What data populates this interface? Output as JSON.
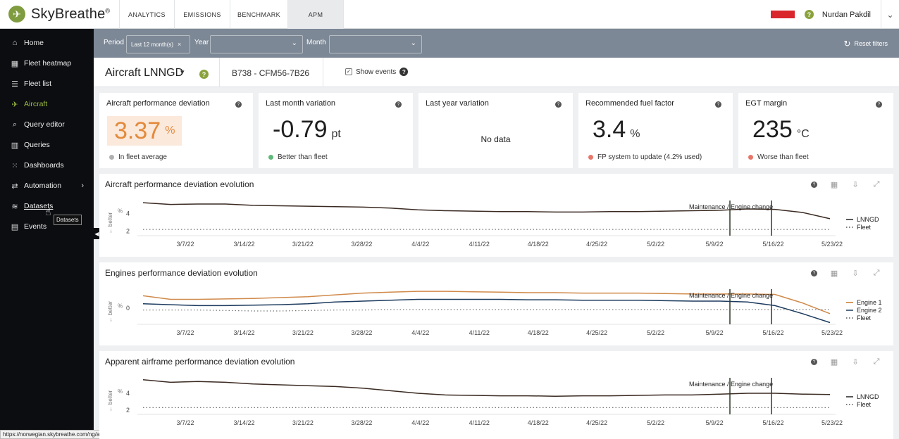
{
  "app": {
    "name": "SkyBreathe",
    "logo_mark": "®"
  },
  "top_nav": {
    "tabs": [
      "ANALYTICS",
      "EMISSIONS",
      "BENCHMARK",
      "APM"
    ],
    "active": "APM",
    "user_name": "Nurdan Pakdil",
    "help_glyph": "?",
    "chevron_glyph": "⌄"
  },
  "sidebar": {
    "items": [
      {
        "label": "Home",
        "icon": "home-icon",
        "glyph": "⌂"
      },
      {
        "label": "Fleet heatmap",
        "icon": "grid-icon",
        "glyph": "▦"
      },
      {
        "label": "Fleet list",
        "icon": "list-icon",
        "glyph": "☰"
      },
      {
        "label": "Aircraft",
        "icon": "plane-icon",
        "glyph": "✈",
        "active": true
      },
      {
        "label": "Query editor",
        "icon": "search-icon",
        "glyph": "⌕"
      },
      {
        "label": "Queries",
        "icon": "bar-chart-icon",
        "glyph": "▥"
      },
      {
        "label": "Dashboards",
        "icon": "dashboard-icon",
        "glyph": "⁙"
      },
      {
        "label": "Automation",
        "icon": "automation-icon",
        "glyph": "⇄",
        "has_chevron": true
      },
      {
        "label": "Datasets",
        "icon": "database-icon",
        "glyph": "≋"
      },
      {
        "label": "Events",
        "icon": "calendar-icon",
        "glyph": "▤"
      }
    ],
    "chevron_glyph": "›",
    "tooltip": "Datasets",
    "collapse_glyph": "◀"
  },
  "status_url": "https://norwegian.skybreathe.com/ng/apm/data-explorer",
  "filters": {
    "period_label": "Period",
    "period_value": "Last 12 month(s)",
    "year_label": "Year",
    "month_label": "Month",
    "reset_label": "Reset filters",
    "clear_glyph": "×",
    "dropdown_glyph": "⌄",
    "reset_glyph": "↻"
  },
  "aircraft": {
    "title": "Aircraft LNNGD",
    "model": "B738 - CFM56-7B26",
    "show_events_label": "Show events",
    "show_events_checked": true,
    "check_glyph": "✓"
  },
  "kpis": [
    {
      "title": "Aircraft performance deviation",
      "value": "3.37",
      "unit": "%",
      "footnote": "In fleet average",
      "status_color": "#b0b0b0",
      "highlight": true
    },
    {
      "title": "Last month variation",
      "value": "-0.79",
      "unit": "pt",
      "footnote": "Better than fleet",
      "status_color": "#5fb97a"
    },
    {
      "title": "Last year variation",
      "no_data": "No data"
    },
    {
      "title": "Recommended fuel factor",
      "value": "3.4",
      "unit": "%",
      "footnote": "FP system to update (4.2% used)",
      "status_color": "#e8766a"
    },
    {
      "title": "EGT margin",
      "value": "235",
      "unit": "°C",
      "footnote": "Worse than fleet",
      "status_color": "#e8766a"
    }
  ],
  "info_glyph": "?",
  "charts": [
    {
      "title": "Aircraft performance deviation evolution",
      "y_axis_label": "← better",
      "y_unit": "%",
      "y_ticks": [
        "4",
        "2"
      ],
      "x_ticks": [
        "3/7/22",
        "3/14/22",
        "3/21/22",
        "3/28/22",
        "4/4/22",
        "4/11/22",
        "4/18/22",
        "4/25/22",
        "5/2/22",
        "5/9/22",
        "5/16/22",
        "5/23/22"
      ],
      "event_label": "Maintenance / Engine change",
      "legend": [
        {
          "name": "LNNGD",
          "color": "#222222",
          "dashed": false
        },
        {
          "name": "Fleet",
          "color": "#555555",
          "dashed": true
        }
      ],
      "series": [
        {
          "name": "LNNGD",
          "color": "#3a2a22",
          "values": [
            5.2,
            5.0,
            5.05,
            5.05,
            4.9,
            4.85,
            4.8,
            4.75,
            4.7,
            4.6,
            4.4,
            4.3,
            4.25,
            4.2,
            4.2,
            4.15,
            4.15,
            4.2,
            4.2,
            4.25,
            4.3,
            4.35,
            4.5,
            4.45,
            4.1,
            3.4
          ]
        },
        {
          "name": "Fleet",
          "color": "#777777",
          "dashed": true,
          "values": [
            2.2,
            2.2,
            2.2,
            2.2,
            2.2,
            2.2,
            2.2,
            2.2,
            2.2,
            2.2,
            2.2,
            2.2,
            2.2,
            2.2,
            2.2,
            2.2,
            2.2,
            2.2,
            2.2,
            2.2,
            2.2,
            2.2,
            2.2,
            2.2,
            2.2,
            2.2
          ]
        }
      ]
    },
    {
      "title": "Engines performance deviation evolution",
      "y_axis_label": "← better",
      "y_unit": "%",
      "y_ticks": [
        "0"
      ],
      "x_ticks": [
        "3/7/22",
        "3/14/22",
        "3/21/22",
        "3/28/22",
        "4/4/22",
        "4/11/22",
        "4/18/22",
        "4/25/22",
        "5/2/22",
        "5/9/22",
        "5/16/22",
        "5/23/22"
      ],
      "event_label": "Maintenance / Engine change",
      "legend": [
        {
          "name": "Engine 1",
          "color": "#c8772a",
          "dashed": false
        },
        {
          "name": "Engine 2",
          "color": "#1c3a5e",
          "dashed": false
        },
        {
          "name": "Fleet",
          "color": "#555555",
          "dashed": true
        }
      ],
      "series": [
        {
          "name": "Engine 1",
          "color": "#d08a4a",
          "values": [
            1.4,
            1.0,
            1.0,
            1.05,
            1.1,
            1.2,
            1.3,
            1.5,
            1.7,
            1.8,
            1.9,
            1.9,
            1.85,
            1.8,
            1.75,
            1.75,
            1.7,
            1.7,
            1.7,
            1.65,
            1.6,
            1.6,
            1.6,
            1.55,
            0.6,
            -0.6
          ]
        },
        {
          "name": "Engine 2",
          "color": "#1c3a5e",
          "values": [
            0.5,
            0.4,
            0.3,
            0.3,
            0.35,
            0.4,
            0.5,
            0.7,
            0.8,
            0.9,
            1.0,
            1.0,
            1.0,
            1.0,
            0.95,
            0.95,
            0.9,
            0.9,
            0.9,
            0.85,
            0.8,
            0.8,
            0.7,
            0.3,
            -0.6,
            -1.6
          ]
        },
        {
          "name": "Fleet",
          "color": "#777777",
          "dashed": true,
          "values": [
            -0.2,
            -0.2,
            -0.2,
            -0.25,
            -0.3,
            -0.3,
            -0.25,
            -0.2,
            -0.2,
            -0.15,
            -0.15,
            -0.15,
            -0.15,
            -0.15,
            -0.15,
            -0.15,
            -0.15,
            -0.15,
            -0.15,
            -0.15,
            -0.15,
            -0.15,
            -0.15,
            -0.15,
            -0.15,
            -0.15
          ]
        }
      ]
    },
    {
      "title": "Apparent airframe performance deviation evolution",
      "y_axis_label": "← better",
      "y_unit": "%",
      "y_ticks": [
        "4",
        "2"
      ],
      "x_ticks": [
        "3/7/22",
        "3/14/22",
        "3/21/22",
        "3/28/22",
        "4/4/22",
        "4/11/22",
        "4/18/22",
        "4/25/22",
        "5/2/22",
        "5/9/22",
        "5/16/22",
        "5/23/22"
      ],
      "event_label": "Maintenance / Engine change",
      "legend": [
        {
          "name": "LNNGD",
          "color": "#222222",
          "dashed": false
        },
        {
          "name": "Fleet",
          "color": "#555555",
          "dashed": true
        }
      ],
      "series": [
        {
          "name": "LNNGD",
          "color": "#3a2a22",
          "values": [
            5.6,
            5.3,
            5.4,
            5.3,
            5.1,
            5.0,
            4.9,
            4.8,
            4.6,
            4.3,
            4.0,
            3.8,
            3.75,
            3.7,
            3.7,
            3.65,
            3.7,
            3.7,
            3.75,
            3.8,
            3.8,
            3.9,
            4.0,
            4.0,
            3.9,
            3.85
          ]
        },
        {
          "name": "Fleet",
          "color": "#777777",
          "dashed": true,
          "values": [
            2.3,
            2.3,
            2.3,
            2.3,
            2.3,
            2.3,
            2.3,
            2.3,
            2.3,
            2.3,
            2.3,
            2.3,
            2.3,
            2.3,
            2.3,
            2.3,
            2.3,
            2.3,
            2.3,
            2.3,
            2.3,
            2.3,
            2.3,
            2.3,
            2.3,
            2.3
          ]
        }
      ]
    }
  ],
  "chart_tools": {
    "table_glyph": "▦",
    "export_glyph": "⇩",
    "expand_glyph": "⤢"
  }
}
